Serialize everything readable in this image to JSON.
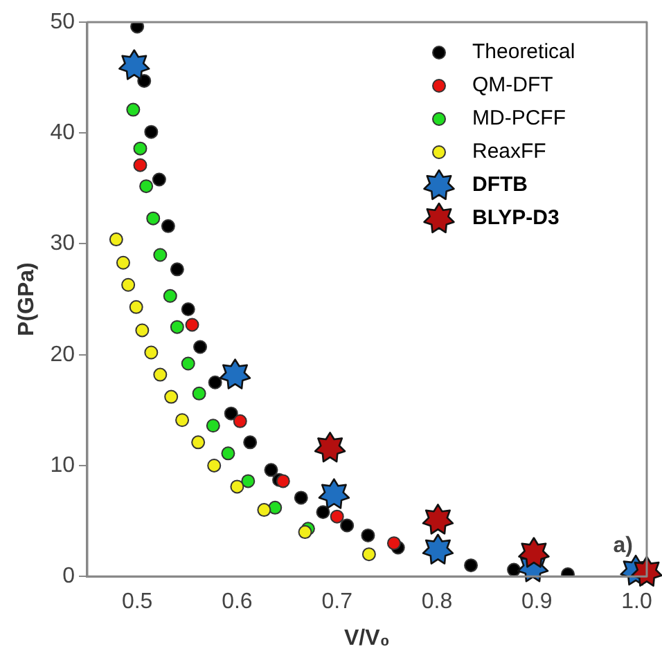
{
  "chart_data": {
    "type": "scatter",
    "xlabel": "V/V₀",
    "ylabel": "P(GPa)",
    "xlim": [
      0.45,
      1.01
    ],
    "xticks": [
      0.5,
      0.6,
      0.7,
      0.8,
      0.9,
      {
        "value": 1.0,
        "label": "1.0"
      }
    ],
    "ylim": [
      0,
      50
    ],
    "yticks": [
      0,
      10,
      20,
      30,
      40,
      50
    ],
    "grid": false,
    "legend": "top right",
    "annotations": [
      "a)"
    ],
    "series": [
      {
        "name": "Theoretical",
        "color": "#000000",
        "marker": "circle",
        "x": [
          0.5,
          0.507,
          0.514,
          0.522,
          0.531,
          0.54,
          0.551,
          0.563,
          0.578,
          0.594,
          0.613,
          0.634,
          0.642,
          0.664,
          0.686,
          0.71,
          0.731,
          0.761,
          0.834,
          0.877,
          0.931
        ],
        "values": [
          49.6,
          44.7,
          40.1,
          35.8,
          31.6,
          27.7,
          24.1,
          20.7,
          17.5,
          14.7,
          12.1,
          9.6,
          8.7,
          7.1,
          5.8,
          4.6,
          3.7,
          2.6,
          1.0,
          0.6,
          0.2
        ]
      },
      {
        "name": "QM-DFT",
        "color": "#e8130f",
        "marker": "circle",
        "x": [
          0.503,
          0.555,
          0.603,
          0.646,
          0.7,
          0.757
        ],
        "values": [
          37.1,
          22.7,
          14.0,
          8.6,
          5.4,
          3.0
        ]
      },
      {
        "name": "MD-PCFF",
        "color": "#22dd22",
        "marker": "circle",
        "x": [
          0.496,
          0.503,
          0.509,
          0.516,
          0.523,
          0.533,
          0.54,
          0.551,
          0.562,
          0.576,
          0.591,
          0.611,
          0.638,
          0.671
        ],
        "values": [
          42.1,
          38.6,
          35.2,
          32.3,
          29.0,
          25.3,
          22.5,
          19.2,
          16.5,
          13.6,
          11.1,
          8.6,
          6.2,
          4.3
        ]
      },
      {
        "name": "ReaxFF",
        "color": "#f2ee1a",
        "marker": "circle",
        "x": [
          0.479,
          0.486,
          0.491,
          0.499,
          0.505,
          0.514,
          0.523,
          0.534,
          0.545,
          0.561,
          0.577,
          0.6,
          0.627,
          0.668,
          0.732
        ],
        "values": [
          30.4,
          28.3,
          26.3,
          24.3,
          22.2,
          20.2,
          18.2,
          16.2,
          14.1,
          12.1,
          10.0,
          8.1,
          6.0,
          4.0,
          2.0
        ]
      },
      {
        "name": "DFTB",
        "color": "#1f6fc0",
        "marker": "star",
        "x": [
          0.497,
          0.598,
          0.697,
          0.801,
          0.896,
          0.999
        ],
        "values": [
          46.1,
          18.2,
          7.4,
          2.4,
          0.8,
          0.5
        ]
      },
      {
        "name": "BLYP-D3",
        "color": "#b30f0f",
        "marker": "star",
        "x": [
          0.693,
          0.801,
          0.897,
          1.01
        ],
        "values": [
          11.6,
          5.1,
          2.1,
          0.4
        ]
      }
    ]
  }
}
